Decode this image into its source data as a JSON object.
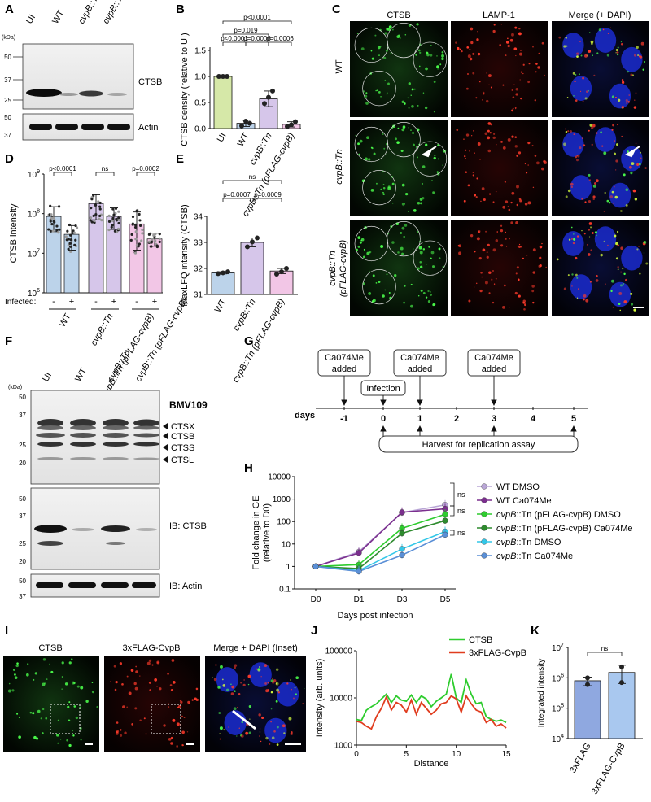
{
  "panel_letters": [
    "A",
    "B",
    "C",
    "D",
    "E",
    "F",
    "G",
    "H",
    "I",
    "J",
    "K"
  ],
  "colors": {
    "ui": "#d6e8a8",
    "wt": "#bcd3ea",
    "cvpb": "#d6c6ea",
    "comp": "#f2c6e6",
    "purple": "#7b2f8e",
    "lightpurple": "#b9a6d6",
    "green": "#2ecc2e",
    "darkgreen": "#2e8b2e",
    "cyan": "#33c7e8",
    "blue": "#5a8fd6",
    "red": "#e03c1e",
    "barblue": "#8fa8e0",
    "barlight": "#a9c8ef"
  },
  "panelA": {
    "kda_label": "(kDa)",
    "lanes": [
      "UI",
      "WT",
      "cvpB::Tn",
      "cvpB::Tn (pFLAG-cvpB)"
    ],
    "ctsb_ladder": [
      "50",
      "37",
      "25"
    ],
    "actin_ladder": [
      "50",
      "37"
    ],
    "band_ctsb": "CTSB",
    "band_actin": "Actin"
  },
  "panelC": {
    "columns": [
      "CTSB",
      "LAMP-1",
      "Merge (+ DAPI)"
    ],
    "rows": [
      "WT",
      "cvpB::Tn",
      "cvpB::Tn (pFLAG-cvpB)"
    ]
  },
  "panelF": {
    "kda_label": "(kDa)",
    "lanes": [
      "UI",
      "WT",
      "cvpB::Tn",
      "cvpB::Tn (pFLAG-cvpB)"
    ],
    "probe_ladder": [
      "50",
      "37",
      "25",
      "20"
    ],
    "ctsb_ladder": [
      "50",
      "37",
      "25",
      "20"
    ],
    "actin_ladder": [
      "50",
      "37"
    ],
    "probe": "BMV109",
    "bands": [
      "CTSX",
      "CTSB",
      "CTSS",
      "CTSL"
    ],
    "ib_ctsb": "IB: CTSB",
    "ib_actin": "IB: Actin"
  },
  "panelG": {
    "days_label": "days",
    "days": [
      "-1",
      "0",
      "1",
      "2",
      "3",
      "4",
      "5"
    ],
    "boxes": [
      "Ca074Me added",
      "Infection",
      "Ca074Me added",
      "Ca074Me added"
    ],
    "harvest": "Harvest for replication assay"
  },
  "panelI": {
    "columns": [
      "CTSB",
      "3xFLAG-CvpB",
      "Merge + DAPI (Inset)"
    ]
  },
  "chart_data": [
    {
      "panel": "B",
      "type": "bar",
      "ylabel": "CTSB density (relative to UI)",
      "categories": [
        "UI",
        "WT",
        "cvpB::Tn",
        "cvpB::Tn (pFLAG-cvpB)"
      ],
      "values": [
        1.0,
        0.1,
        0.57,
        0.08
      ],
      "errors": [
        0.01,
        0.06,
        0.15,
        0.05
      ],
      "points": [
        [
          1.0,
          1.0,
          1.0
        ],
        [
          0.05,
          0.14,
          0.1
        ],
        [
          0.48,
          0.6,
          0.72
        ],
        [
          0.04,
          0.07,
          0.13
        ]
      ],
      "ylim": [
        0,
        1.5
      ],
      "yticks": [
        "0.0",
        "0.5",
        "1.0",
        "1.5"
      ],
      "brackets": [
        [
          "p<0.0001",
          0,
          3
        ],
        [
          "p=0.019",
          0,
          2
        ],
        [
          "p<0.0001",
          0,
          1
        ],
        [
          "p=0.0006",
          1,
          2
        ],
        [
          "p=0.0006",
          2,
          3
        ]
      ]
    },
    {
      "panel": "D",
      "type": "bar",
      "ylabel": "CTSB intensity",
      "scale": "log",
      "yticks": [
        "10^6",
        "10^7",
        "10^8",
        "10^9"
      ],
      "ylim": [
        1000000,
        1000000000
      ],
      "categories_infected": [
        "-",
        "+",
        "-",
        "+",
        "-",
        "+"
      ],
      "infected_label": "Infected:",
      "groups": [
        "WT",
        "cvpB::Tn",
        "cvpB::Tn (pFLAG-cvpB)"
      ],
      "values": [
        85000000,
        30000000,
        180000000,
        85000000,
        55000000,
        23000000
      ],
      "errors": [
        [
          35000000,
          150000000
        ],
        [
          12000000,
          50000000
        ],
        [
          70000000,
          300000000
        ],
        [
          40000000,
          140000000
        ],
        [
          12000000,
          110000000
        ],
        [
          15000000,
          32000000
        ]
      ],
      "brackets": [
        [
          "p<0.0001",
          0,
          1
        ],
        [
          "ns",
          2,
          3
        ],
        [
          "p=0.0002",
          4,
          5
        ]
      ]
    },
    {
      "panel": "E",
      "type": "bar",
      "ylabel": "MaxLFQ intensity (CTSB)",
      "categories": [
        "WT",
        "cvpB::Tn",
        "cvpB::Tn (pFLAG-cvpB)"
      ],
      "values": [
        31.83,
        33.0,
        31.9
      ],
      "errors": [
        0.04,
        0.17,
        0.1
      ],
      "points": [
        [
          31.8,
          31.83,
          31.87
        ],
        [
          32.83,
          33.02,
          33.17
        ],
        [
          31.78,
          31.87,
          32.0
        ]
      ],
      "ylim": [
        31,
        34
      ],
      "yticks": [
        "31",
        "32",
        "33",
        "34"
      ],
      "brackets": [
        [
          "ns",
          0,
          2
        ],
        [
          "p=0.0007",
          0,
          1
        ],
        [
          "p=0.0009",
          1,
          2
        ]
      ]
    },
    {
      "panel": "H",
      "type": "line",
      "scale": "log",
      "ylabel": "Fold change in GE (relative to D0)",
      "xlabel": "Days post infection",
      "x": [
        "D0",
        "D1",
        "D3",
        "D5"
      ],
      "yticks": [
        "0.1",
        "1",
        "10",
        "100",
        "1000",
        "10000"
      ],
      "ylim": [
        0.1,
        10000
      ],
      "series": [
        {
          "name": "WT DMSO",
          "values": [
            1,
            4.5,
            250,
            550
          ]
        },
        {
          "name": "WT Ca074Me",
          "values": [
            1,
            4,
            260,
            370
          ]
        },
        {
          "name": "cvpB::Tn (pFLAG-cvpB) DMSO",
          "values": [
            1,
            1.2,
            50,
            210
          ]
        },
        {
          "name": "cvpB::Tn (pFLAG-cvpB) Ca074Me",
          "values": [
            1,
            0.8,
            30,
            110
          ]
        },
        {
          "name": "cvpB::Tn DMSO",
          "values": [
            1,
            0.65,
            6,
            36
          ]
        },
        {
          "name": "cvpB::Tn Ca074Me",
          "values": [
            1,
            0.6,
            3.2,
            26
          ]
        }
      ],
      "annotations": [
        "ns",
        "ns",
        "ns"
      ]
    },
    {
      "panel": "J",
      "type": "line",
      "scale": "log",
      "ylabel": "Intensity (arb. units)",
      "xlabel": "Distance",
      "xticks": [
        "0",
        "5",
        "10",
        "15"
      ],
      "xlim": [
        0,
        15
      ],
      "yticks": [
        "1000",
        "10000",
        "100000"
      ],
      "ylim": [
        1000,
        100000
      ],
      "series": [
        {
          "name": "CTSB",
          "x": [
            0,
            0.5,
            1,
            1.5,
            2,
            2.5,
            3,
            3.5,
            4,
            4.5,
            5,
            5.5,
            6,
            6.5,
            7,
            7.5,
            8,
            8.5,
            9,
            9.5,
            10,
            10.5,
            11,
            11.5,
            12,
            12.5,
            13,
            13.5,
            14,
            14.5,
            15
          ],
          "values": [
            3500,
            3300,
            5500,
            6500,
            7500,
            9500,
            12000,
            8000,
            11000,
            9000,
            8500,
            11500,
            8000,
            11000,
            9500,
            6500,
            8500,
            10000,
            12000,
            32000,
            10000,
            8000,
            24000,
            12000,
            7500,
            8000,
            4000,
            3500,
            3200,
            3400,
            3000
          ]
        },
        {
          "name": "3xFLAG-CvpB",
          "x": [
            0,
            0.5,
            1,
            1.5,
            2,
            2.5,
            3,
            3.5,
            4,
            4.5,
            5,
            5.5,
            6,
            6.5,
            7,
            7.5,
            8,
            8.5,
            9,
            9.5,
            10,
            10.5,
            11,
            11.5,
            12,
            12.5,
            13,
            13.5,
            14,
            14.5,
            15
          ],
          "values": [
            3200,
            3000,
            2500,
            2200,
            4000,
            6000,
            10500,
            5500,
            8000,
            7000,
            5000,
            9000,
            4500,
            8000,
            6000,
            4500,
            5500,
            7500,
            8000,
            11000,
            9500,
            5000,
            11000,
            7500,
            5500,
            5000,
            3000,
            3500,
            2500,
            2800,
            2300
          ]
        }
      ]
    },
    {
      "panel": "K",
      "type": "bar",
      "scale": "log",
      "ylabel": "Integrated intensity",
      "categories": [
        "3xFLAG",
        "3xFLAG-CvpB"
      ],
      "values": [
        800000,
        1500000
      ],
      "errors": [
        [
          550000,
          1050000
        ],
        [
          650000,
          2600000
        ]
      ],
      "points": [
        [
          1000000,
          600000
        ],
        [
          2300000,
          700000
        ]
      ],
      "yticks": [
        "10^4",
        "10^5",
        "10^6",
        "10^7"
      ],
      "ylim": [
        10000,
        10000000
      ],
      "brackets": [
        [
          "ns",
          0,
          1
        ]
      ]
    }
  ]
}
